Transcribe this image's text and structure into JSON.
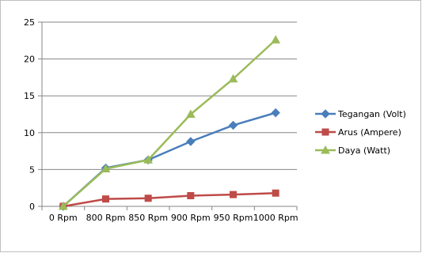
{
  "chart_data": {
    "type": "line",
    "categories": [
      "0 Rpm",
      "800 Rpm",
      "850 Rpm",
      "900 Rpm",
      "950 Rpm",
      "1000 Rpm"
    ],
    "ylim": [
      0,
      25
    ],
    "yticks": [
      0,
      5,
      10,
      15,
      20,
      25
    ],
    "grid": "horizontal",
    "legend_position": "right",
    "series": [
      {
        "name": "Tegangan (Volt)",
        "color": "#4a7ebb",
        "marker": "diamond",
        "values": [
          0,
          5.2,
          6.3,
          8.8,
          11.0,
          12.7
        ]
      },
      {
        "name": "Arus (Ampere)",
        "color": "#be4b48",
        "marker": "square",
        "values": [
          0,
          1.0,
          1.1,
          1.45,
          1.6,
          1.8
        ]
      },
      {
        "name": "Daya (Watt)",
        "color": "#9bbb59",
        "marker": "triangle",
        "values": [
          0,
          5.1,
          6.3,
          12.5,
          17.3,
          22.6
        ]
      }
    ]
  }
}
